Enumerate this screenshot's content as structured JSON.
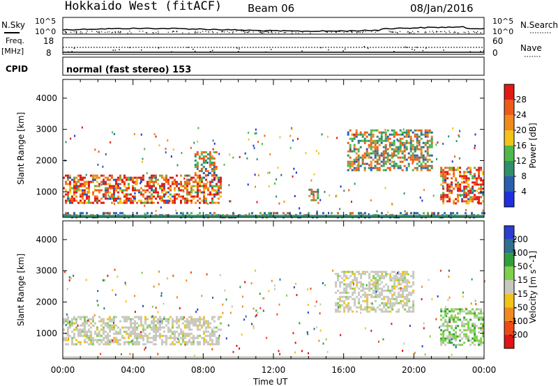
{
  "header": {
    "station": "Hokkaido West (fitACF)",
    "beam": "Beam 06",
    "date": "08/Jan/2016"
  },
  "strips": {
    "nsky_label": "N.Sky",
    "nsearch_label": "N.Search",
    "noise_ticks": [
      "10^5",
      "10^0"
    ],
    "freq_label_top": "Freq.",
    "freq_label_unit": "[MHz]",
    "freq_ticks": [
      "18",
      "8"
    ],
    "nave_label": "Nave",
    "nave_ticks": [
      "60",
      "0"
    ],
    "cpid_label": "CPID",
    "cpid_text": "normal (fast stereo) 153"
  },
  "chart_data": [
    {
      "type": "heatmap",
      "panel": "power",
      "ylabel": "Slant Range [km]",
      "xlabel": "Time UT",
      "xlim": [
        "00:00",
        "00:00"
      ],
      "x_ticks": [
        "00:00",
        "04:00",
        "08:00",
        "12:00",
        "16:00",
        "20:00",
        "00:00"
      ],
      "ylim": [
        180,
        4600
      ],
      "y_ticks": [
        1000,
        2000,
        3000,
        4000
      ],
      "colorbar": {
        "label": "Power [dB]",
        "ticks": [
          4,
          8,
          12,
          16,
          20,
          24,
          28
        ],
        "levels": [
          {
            "from": 0,
            "to": 4,
            "color": "#1f2fdf"
          },
          {
            "from": 4,
            "to": 8,
            "color": "#2a5fb0"
          },
          {
            "from": 8,
            "to": 12,
            "color": "#2f8f6a"
          },
          {
            "from": 12,
            "to": 16,
            "color": "#4fb84a"
          },
          {
            "from": 16,
            "to": 20,
            "color": "#f2c318"
          },
          {
            "from": 20,
            "to": 24,
            "color": "#f08a1c"
          },
          {
            "from": 24,
            "to": 28,
            "color": "#ee5a1a"
          },
          {
            "from": 28,
            "to": 32,
            "color": "#e01a14"
          }
        ]
      },
      "regions": [
        {
          "t": [
            0.0,
            9.0
          ],
          "range": [
            650,
            1550
          ],
          "class": "strong"
        },
        {
          "t": [
            7.5,
            8.8
          ],
          "range": [
            1500,
            2300
          ],
          "class": "medium"
        },
        {
          "t": [
            14.0,
            14.5
          ],
          "range": [
            700,
            1100
          ],
          "class": "medium"
        },
        {
          "t": [
            16.2,
            21.0
          ],
          "range": [
            1700,
            3000
          ],
          "class": "medium"
        },
        {
          "t": [
            21.5,
            24.0
          ],
          "range": [
            650,
            1800
          ],
          "class": "strong"
        },
        {
          "t": [
            0.0,
            24.0
          ],
          "range": [
            200,
            350
          ],
          "class": "weak"
        }
      ]
    },
    {
      "type": "heatmap",
      "panel": "velocity",
      "ylabel": "Slant Range [km]",
      "xlabel": "Time UT",
      "x_ticks": [
        "00:00",
        "04:00",
        "08:00",
        "12:00",
        "16:00",
        "20:00",
        "00:00"
      ],
      "ylim": [
        180,
        4600
      ],
      "y_ticks": [
        1000,
        2000,
        3000,
        4000
      ],
      "colorbar": {
        "label": "Velocity [m s^-1]",
        "ticks": [
          200,
          100,
          50,
          15,
          -15,
          -50,
          -100,
          -200
        ],
        "levels": [
          {
            "value": 200,
            "color": "#2a3fd0"
          },
          {
            "value": 100,
            "color": "#2f6f8f"
          },
          {
            "value": 50,
            "color": "#2f9f3a"
          },
          {
            "value": 15,
            "color": "#7fd04a"
          },
          {
            "value": 0,
            "color": "#c8c8c0"
          },
          {
            "value": -15,
            "color": "#f2c318"
          },
          {
            "value": -50,
            "color": "#f08a1c"
          },
          {
            "value": -100,
            "color": "#ee4a16"
          },
          {
            "value": -200,
            "color": "#e01414"
          }
        ]
      },
      "regions": [
        {
          "t": [
            0.0,
            9.0
          ],
          "range": [
            650,
            1550
          ],
          "class": "ground"
        },
        {
          "t": [
            15.5,
            20.0
          ],
          "range": [
            1700,
            3000
          ],
          "class": "ground"
        },
        {
          "t": [
            21.5,
            24.0
          ],
          "range": [
            650,
            1800
          ],
          "class": "mixed"
        }
      ]
    }
  ]
}
